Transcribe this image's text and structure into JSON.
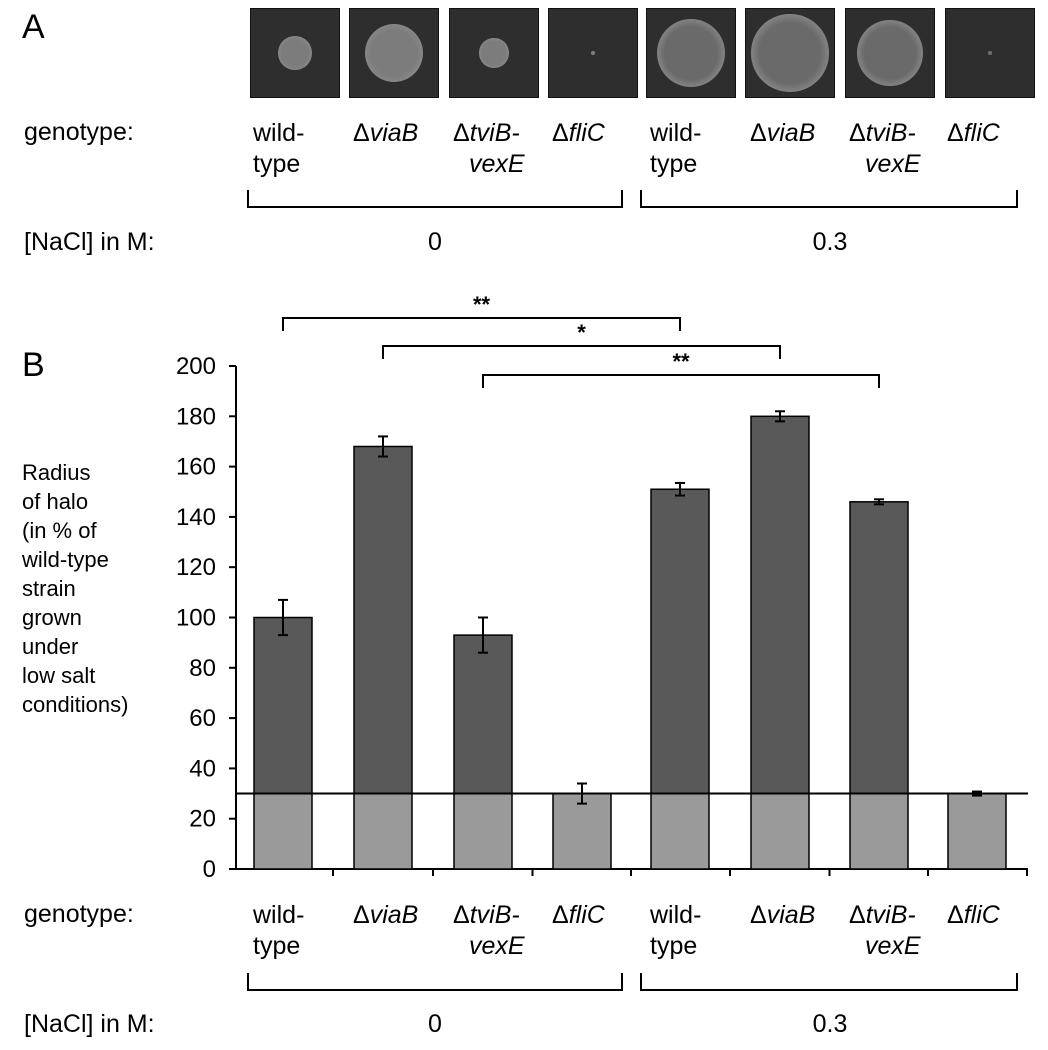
{
  "panel_a": {
    "letter": "A",
    "genotype_label": "genotype:",
    "nacl_label": "[NaCl] in M:",
    "genotypes": [
      {
        "prefix": "",
        "line1": "wild-",
        "line2": "type"
      },
      {
        "prefix": "Δ",
        "line1": "viaB",
        "line2": ""
      },
      {
        "prefix": "Δ",
        "line1": "tviB-",
        "line2": "vexE"
      },
      {
        "prefix": "Δ",
        "line1": "fliC",
        "line2": ""
      },
      {
        "prefix": "",
        "line1": "wild-",
        "line2": "type"
      },
      {
        "prefix": "Δ",
        "line1": "viaB",
        "line2": ""
      },
      {
        "prefix": "Δ",
        "line1": "tviB-",
        "line2": "vexE"
      },
      {
        "prefix": "Δ",
        "line1": "fliC",
        "line2": ""
      }
    ],
    "concentrations": [
      "0",
      "0.3"
    ],
    "halo_sizes": [
      0.4,
      0.7,
      0.35,
      0.05,
      0.82,
      0.92,
      0.78,
      0.05
    ]
  },
  "panel_b": {
    "letter": "B",
    "genotype_label": "genotype:",
    "nacl_label": "[NaCl] in M:",
    "genotypes": [
      {
        "prefix": "",
        "line1": "wild-",
        "line2": "type"
      },
      {
        "prefix": "Δ",
        "line1": "viaB",
        "line2": ""
      },
      {
        "prefix": "Δ",
        "line1": "tviB-",
        "line2": "vexE"
      },
      {
        "prefix": "Δ",
        "line1": "fliC",
        "line2": ""
      },
      {
        "prefix": "",
        "line1": "wild-",
        "line2": "type"
      },
      {
        "prefix": "Δ",
        "line1": "viaB",
        "line2": ""
      },
      {
        "prefix": "Δ",
        "line1": "tviB-",
        "line2": "vexE"
      },
      {
        "prefix": "Δ",
        "line1": "fliC",
        "line2": ""
      }
    ],
    "concentrations": [
      "0",
      "0.3"
    ],
    "ylabel_lines": [
      "Radius",
      "of halo",
      "(in % of",
      "wild-type",
      "strain",
      "grown",
      "under",
      "low salt",
      "conditions)"
    ]
  },
  "chart_data": {
    "type": "bar",
    "categories": [
      "wild-type",
      "ΔviaB",
      "ΔtviB-vexE",
      "ΔfliC",
      "wild-type",
      "ΔviaB",
      "ΔtviB-vexE",
      "ΔfliC"
    ],
    "values": [
      100,
      168,
      93,
      30,
      151,
      180,
      146,
      30
    ],
    "errors": [
      7,
      4,
      7,
      4,
      2.5,
      2,
      1,
      0.8
    ],
    "baseline": 30,
    "ylim": [
      0,
      200
    ],
    "yticks": [
      0,
      20,
      40,
      60,
      80,
      100,
      120,
      140,
      160,
      180,
      200
    ],
    "significance": [
      {
        "from": 0,
        "to": 4,
        "label": "**"
      },
      {
        "from": 1,
        "to": 5,
        "label": "*"
      },
      {
        "from": 2,
        "to": 6,
        "label": "**"
      }
    ],
    "colors": {
      "bar_upper": "#595959",
      "bar_lower": "#9a9a9a",
      "axis": "#000000"
    }
  }
}
